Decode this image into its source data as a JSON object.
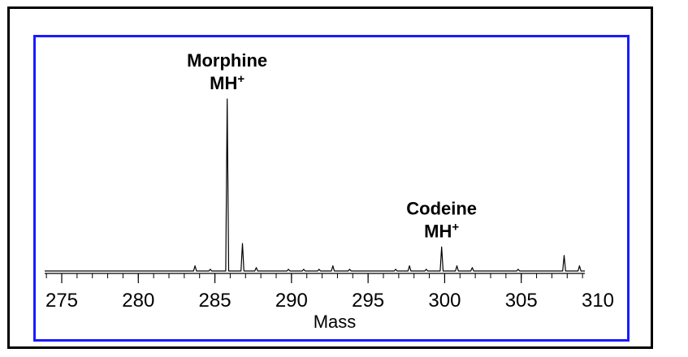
{
  "chart_data": {
    "type": "line",
    "title": "",
    "xlabel": "Mass",
    "ylabel": "",
    "xlim": [
      274,
      310.2
    ],
    "ylim": [
      0,
      100
    ],
    "x_ticks": [
      275,
      280,
      285,
      290,
      295,
      300,
      305,
      310
    ],
    "x_ticks_minor_step": 1,
    "grid": false,
    "legend": "none",
    "peaks": [
      {
        "x": 283.7,
        "y": 3
      },
      {
        "x": 284.7,
        "y": 1
      },
      {
        "x": 285.8,
        "y": 100
      },
      {
        "x": 286.8,
        "y": 16
      },
      {
        "x": 287.7,
        "y": 2
      },
      {
        "x": 289.8,
        "y": 1
      },
      {
        "x": 290.8,
        "y": 1
      },
      {
        "x": 291.8,
        "y": 1
      },
      {
        "x": 292.7,
        "y": 3
      },
      {
        "x": 293.8,
        "y": 1
      },
      {
        "x": 296.8,
        "y": 1
      },
      {
        "x": 297.7,
        "y": 3
      },
      {
        "x": 298.8,
        "y": 1
      },
      {
        "x": 299.8,
        "y": 14
      },
      {
        "x": 300.8,
        "y": 3
      },
      {
        "x": 301.8,
        "y": 2
      },
      {
        "x": 304.8,
        "y": 1
      },
      {
        "x": 307.8,
        "y": 9
      },
      {
        "x": 308.8,
        "y": 3
      }
    ],
    "annotations": [
      {
        "line1": "Morphine",
        "line2": "MH",
        "sup": "+",
        "x": 285.8,
        "y": 100
      },
      {
        "line1": "Codeine",
        "line2": "MH",
        "sup": "+",
        "x": 299.8,
        "y": 14
      }
    ]
  }
}
